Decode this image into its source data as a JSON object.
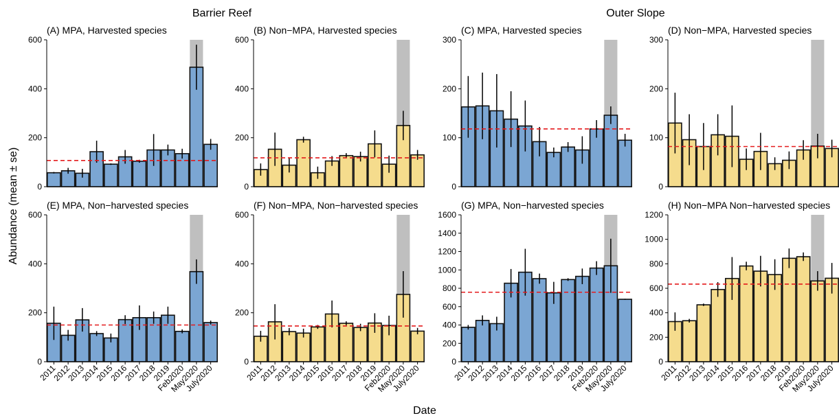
{
  "figure": {
    "group_titles": [
      "Barrier Reef",
      "Outer Slope"
    ],
    "ylabel": "Abundance (mean ± se)",
    "xlabel": "Date",
    "colors": {
      "mpa_fill": "#7ba6d3",
      "nonmpa_fill": "#f5dc8d",
      "bar_stroke": "#111111",
      "shade": "#bfbfbf",
      "mean_line": "#e41a1c"
    }
  },
  "chart_data": [
    {
      "type": "bar",
      "title": "(A) MPA, Harvested species",
      "color": "#7ba6d3",
      "categories": [
        "2011",
        "2012",
        "2013",
        "2014",
        "2015",
        "2016",
        "2017",
        "2018",
        "2019",
        "Feb2020",
        "May2020",
        "July2020"
      ],
      "values": [
        57,
        65,
        55,
        143,
        92,
        122,
        104,
        150,
        150,
        135,
        488,
        173
      ],
      "error": [
        3,
        12,
        18,
        45,
        3,
        28,
        6,
        65,
        22,
        20,
        92,
        22
      ],
      "ylim": [
        0,
        600
      ],
      "yticks": [
        0,
        200,
        400,
        600
      ],
      "mean_line": 107,
      "shaded_category": "May2020"
    },
    {
      "type": "bar",
      "title": "(B) Non−MPA, Harvested species",
      "color": "#f5dc8d",
      "categories": [
        "2011",
        "2012",
        "2013",
        "2014",
        "2015",
        "2016",
        "2017",
        "2018",
        "2019",
        "Feb2020",
        "May2020",
        "July2020"
      ],
      "values": [
        70,
        153,
        88,
        192,
        57,
        105,
        127,
        123,
        175,
        92,
        250,
        130
      ],
      "error": [
        25,
        68,
        30,
        12,
        25,
        20,
        10,
        20,
        55,
        35,
        60,
        20
      ],
      "ylim": [
        0,
        600
      ],
      "yticks": [
        0,
        200,
        400,
        600
      ],
      "mean_line": 118,
      "shaded_category": "May2020"
    },
    {
      "type": "bar",
      "title": "(C) MPA, Harvested species",
      "color": "#7ba6d3",
      "categories": [
        "2011",
        "2012",
        "2013",
        "2014",
        "2015",
        "2016",
        "2017",
        "2018",
        "2019",
        "Feb2020",
        "May2020",
        "July2020"
      ],
      "values": [
        163,
        165,
        155,
        138,
        124,
        92,
        70,
        81,
        75,
        118,
        146,
        95
      ],
      "error": [
        63,
        68,
        75,
        57,
        52,
        30,
        10,
        10,
        28,
        18,
        18,
        13
      ],
      "ylim": [
        0,
        300
      ],
      "yticks": [
        0,
        100,
        200,
        300
      ],
      "mean_line": 118,
      "shaded_category": "May2020"
    },
    {
      "type": "bar",
      "title": "(D) Non−MPA, Harvested species",
      "color": "#f5dc8d",
      "categories": [
        "2011",
        "2012",
        "2013",
        "2014",
        "2015",
        "2016",
        "2017",
        "2018",
        "2019",
        "Feb2020",
        "May2020",
        "July2020"
      ],
      "values": [
        130,
        96,
        82,
        106,
        103,
        56,
        72,
        47,
        54,
        75,
        83,
        78
      ],
      "error": [
        62,
        52,
        48,
        42,
        63,
        22,
        38,
        13,
        18,
        20,
        25,
        18
      ],
      "ylim": [
        0,
        300
      ],
      "yticks": [
        0,
        100,
        200,
        300
      ],
      "mean_line": 82,
      "shaded_category": "May2020"
    },
    {
      "type": "bar",
      "title": "(E) MPA, Non−harvested species",
      "color": "#7ba6d3",
      "categories": [
        "2011",
        "2012",
        "2013",
        "2014",
        "2015",
        "2016",
        "2017",
        "2018",
        "2019",
        "Feb2020",
        "May2020",
        "July2020"
      ],
      "values": [
        157,
        108,
        171,
        115,
        97,
        172,
        180,
        180,
        190,
        124,
        368,
        160
      ],
      "error": [
        68,
        22,
        48,
        10,
        18,
        18,
        50,
        25,
        35,
        8,
        50,
        8
      ],
      "ylim": [
        0,
        600
      ],
      "yticks": [
        0,
        200,
        400,
        600
      ],
      "mean_line": 150,
      "shaded_category": "May2020"
    },
    {
      "type": "bar",
      "title": "(F) Non−MPA, Non−harvested species",
      "color": "#f5dc8d",
      "categories": [
        "2011",
        "2012",
        "2013",
        "2014",
        "2015",
        "2016",
        "2017",
        "2018",
        "2019",
        "Feb2020",
        "May2020",
        "July2020"
      ],
      "values": [
        104,
        163,
        123,
        117,
        142,
        195,
        157,
        140,
        158,
        148,
        275,
        125
      ],
      "error": [
        22,
        72,
        15,
        18,
        8,
        55,
        8,
        15,
        40,
        40,
        95,
        13
      ],
      "ylim": [
        0,
        600
      ],
      "yticks": [
        0,
        200,
        400,
        600
      ],
      "mean_line": 146,
      "shaded_category": "May2020"
    },
    {
      "type": "bar",
      "title": "(G) MPA, Non−harvested species",
      "color": "#7ba6d3",
      "categories": [
        "2011",
        "2012",
        "2013",
        "2014",
        "2015",
        "2016",
        "2017",
        "2018",
        "2019",
        "Feb2020",
        "May2020",
        "July2020"
      ],
      "values": [
        375,
        450,
        415,
        855,
        975,
        905,
        750,
        895,
        930,
        1020,
        1045,
        680
      ],
      "error": [
        25,
        55,
        75,
        155,
        255,
        55,
        120,
        15,
        85,
        75,
        295,
        5
      ],
      "ylim": [
        0,
        1600
      ],
      "yticks": [
        0,
        200,
        400,
        600,
        800,
        1000,
        1200,
        1400,
        1600
      ],
      "mean_line": 757,
      "shaded_category": "May2020"
    },
    {
      "type": "bar",
      "title": "(H) Non−MPA Non−harvested species",
      "color": "#f5dc8d",
      "categories": [
        "2011",
        "2012",
        "2013",
        "2014",
        "2015",
        "2016",
        "2017",
        "2018",
        "2019",
        "Feb2020",
        "May2020",
        "July2020"
      ],
      "values": [
        328,
        335,
        465,
        590,
        680,
        782,
        740,
        712,
        845,
        858,
        660,
        682
      ],
      "error": [
        75,
        15,
        10,
        60,
        175,
        35,
        125,
        125,
        80,
        35,
        80,
        125
      ],
      "ylim": [
        0,
        1200
      ],
      "yticks": [
        0,
        200,
        400,
        600,
        800,
        1000,
        1200
      ],
      "mean_line": 634,
      "shaded_category": "May2020"
    }
  ]
}
